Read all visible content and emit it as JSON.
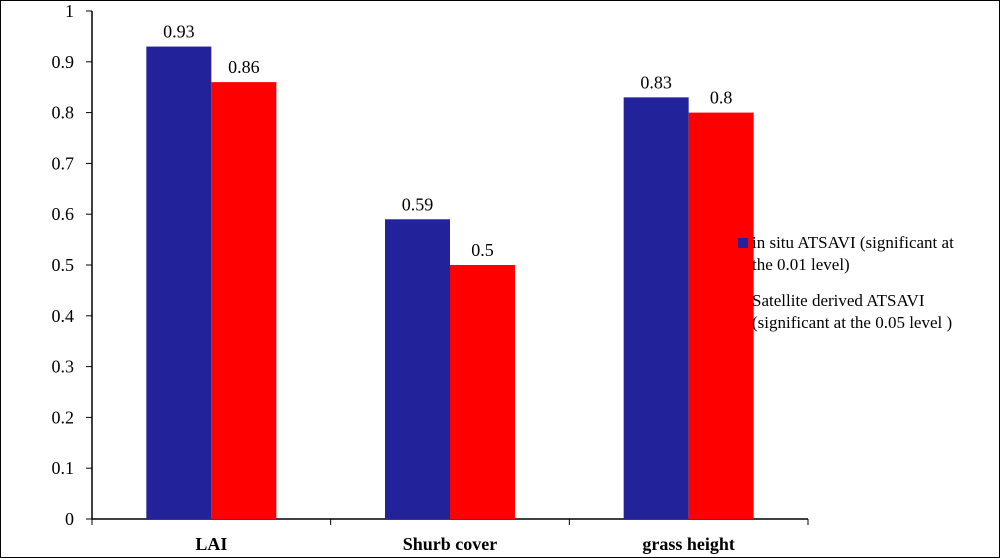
{
  "chart_data": {
    "type": "bar",
    "title": "",
    "xlabel": "",
    "ylabel": "",
    "ylim": [
      0,
      1
    ],
    "yticks": [
      "0",
      "0.1",
      "0.2",
      "0.3",
      "0.4",
      "0.5",
      "0.6",
      "0.7",
      "0.8",
      "0.9",
      "1"
    ],
    "grid": false,
    "legend_position": "right",
    "categories": [
      "LAI",
      "Shurb cover",
      "grass height"
    ],
    "series": [
      {
        "name": "in situ ATSAVI (significant at the 0.01 level)",
        "legend_lines": [
          "in situ ATSAVI (significant at",
          "the 0.01 level)"
        ],
        "color": "#22229a",
        "values": [
          0.93,
          0.59,
          0.83
        ],
        "labels": [
          "0.93",
          "0.59",
          "0.83"
        ]
      },
      {
        "name": "Satellite derived ATSAVI (significant at the 0.05 level )",
        "legend_lines": [
          "Satellite derived ATSAVI",
          "(significant at the 0.05 level )"
        ],
        "color": "#ff0000",
        "values": [
          0.86,
          0.5,
          0.8
        ],
        "labels": [
          "0.86",
          "0.5",
          "0.8"
        ]
      }
    ]
  }
}
